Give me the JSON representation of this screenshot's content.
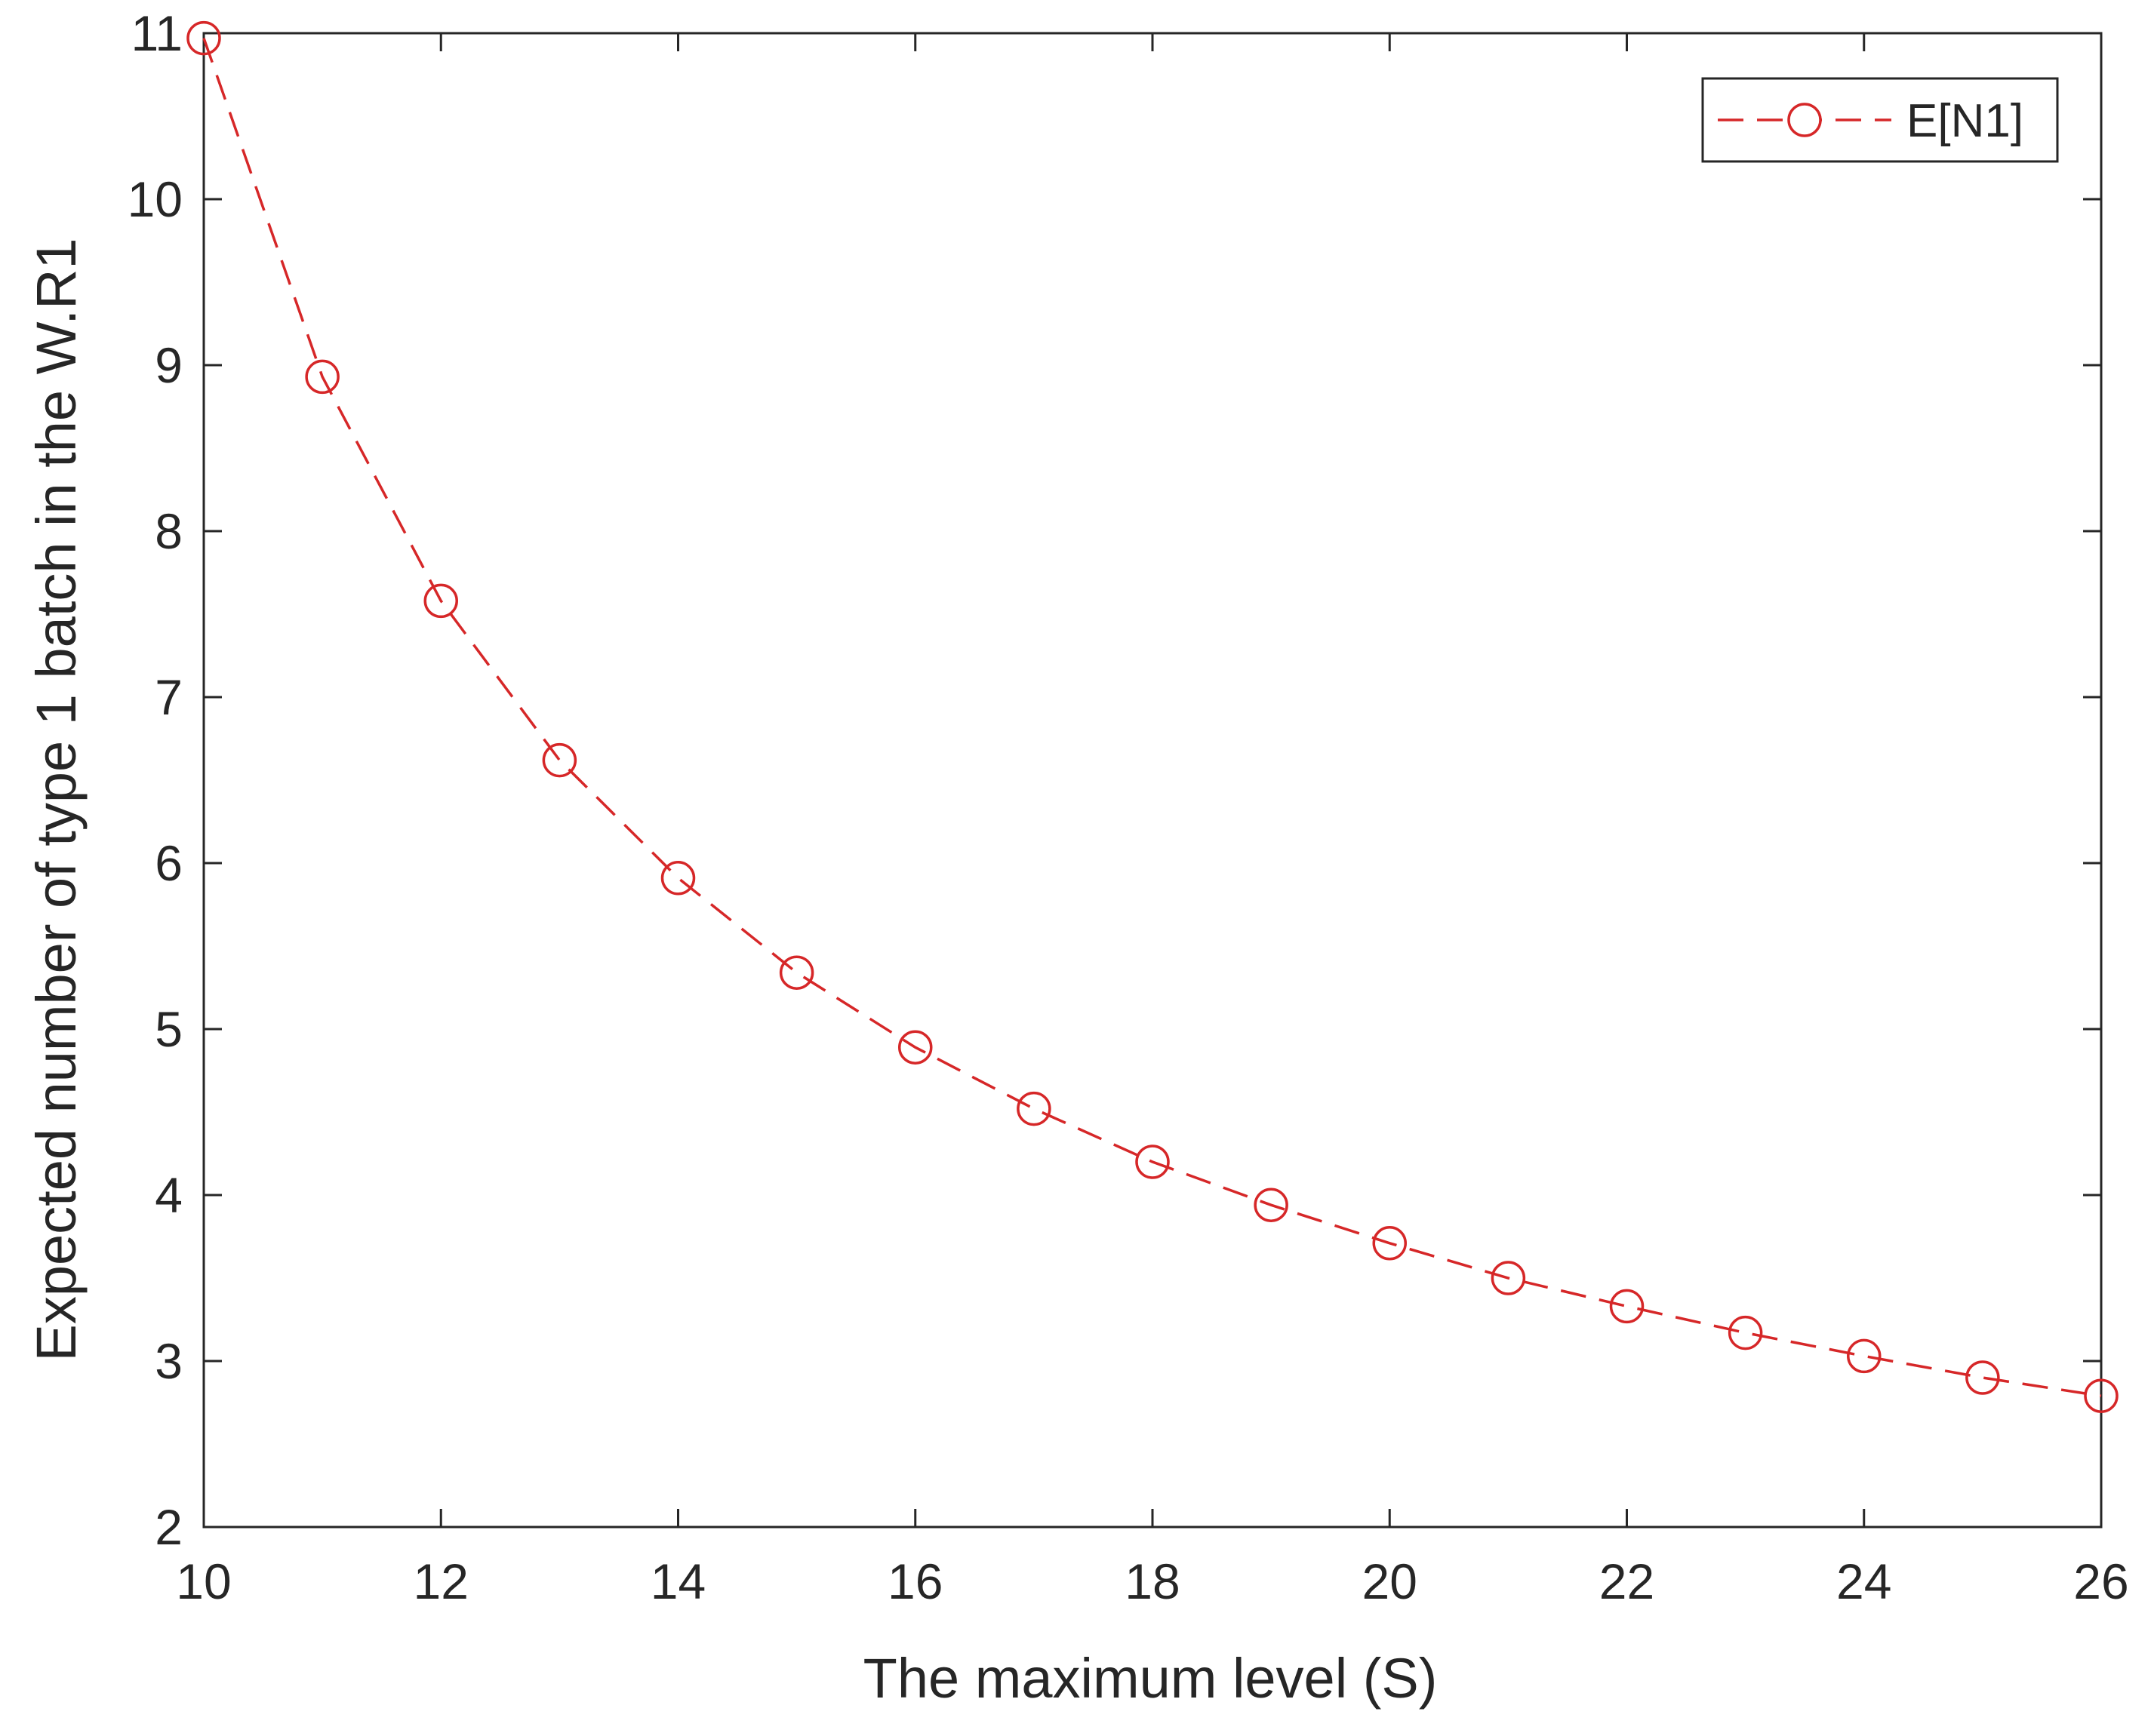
{
  "chart_data": {
    "type": "line",
    "title": "",
    "xlabel": "The maximum level (S)",
    "ylabel": "Expected number of type 1 batch in the W.R1",
    "xlim": [
      10,
      26
    ],
    "ylim": [
      2,
      11
    ],
    "xticks": [
      10,
      12,
      14,
      16,
      18,
      20,
      22,
      24,
      26
    ],
    "yticks": [
      2,
      3,
      4,
      5,
      6,
      7,
      8,
      9,
      10,
      11
    ],
    "grid": false,
    "legend_position": "top-right",
    "series": [
      {
        "name": "E[N1]",
        "color": "#d62728",
        "line_style": "dashed",
        "marker": "circle",
        "x": [
          10,
          11,
          12,
          13,
          14,
          15,
          16,
          17,
          18,
          19,
          20,
          21,
          22,
          23,
          24,
          25,
          26
        ],
        "values": [
          10.97,
          8.93,
          7.58,
          6.62,
          5.91,
          5.34,
          4.89,
          4.52,
          4.2,
          3.94,
          3.71,
          3.5,
          3.33,
          3.17,
          3.03,
          2.9,
          2.79
        ]
      }
    ]
  }
}
